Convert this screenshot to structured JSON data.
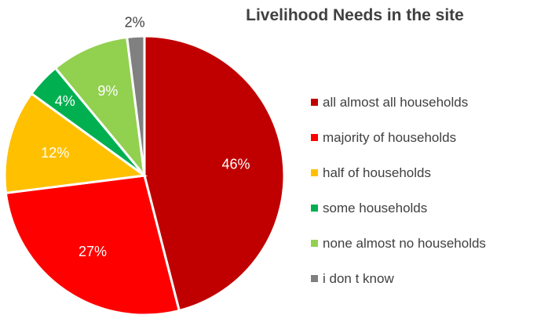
{
  "chart_data": {
    "type": "pie",
    "title": "Livelihood Needs in the site",
    "legend_position": "right",
    "slices": [
      {
        "label": "all almost all households",
        "value": 46,
        "display": "46%",
        "color": "#C00000"
      },
      {
        "label": "majority of households",
        "value": 27,
        "display": "27%",
        "color": "#FF0000"
      },
      {
        "label": "half of households",
        "value": 12,
        "display": "12%",
        "color": "#FFC000"
      },
      {
        "label": "some households",
        "value": 4,
        "display": "4%",
        "color": "#00B050"
      },
      {
        "label": "none almost no households",
        "value": 9,
        "display": "9%",
        "color": "#92D050"
      },
      {
        "label": "i don t know",
        "value": 2,
        "display": "2%",
        "color": "#808080"
      }
    ]
  }
}
